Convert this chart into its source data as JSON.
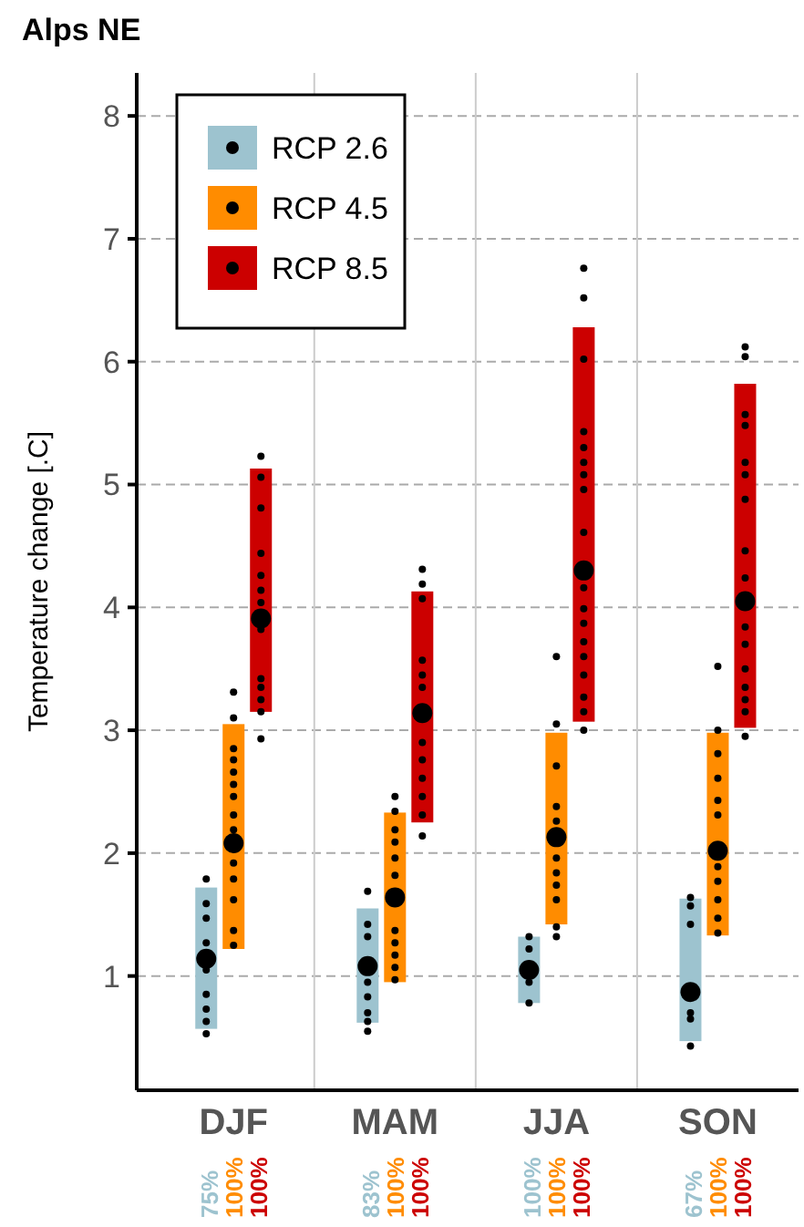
{
  "chart_data": {
    "type": "bar",
    "title": "Alps NE",
    "ylabel": "Temperature change [.C]",
    "categories": [
      "DJF",
      "MAM",
      "JJA",
      "SON"
    ],
    "ylim": [
      0.07,
      8.35
    ],
    "yticks": [
      1,
      2,
      3,
      4,
      5,
      6,
      7,
      8
    ],
    "grid": true,
    "legend": "top left",
    "series": [
      {
        "name": "RCP 2.6",
        "color": "#9dc3cf",
        "base": [
          0.57,
          0.62,
          0.78,
          0.47
        ],
        "values": [
          1.15,
          0.93,
          0.54,
          1.16
        ]
      },
      {
        "name": "RCP 4.5",
        "color": "#ff8c00",
        "base": [
          1.22,
          0.95,
          1.42,
          1.33
        ],
        "values": [
          1.83,
          1.38,
          1.56,
          1.65
        ]
      },
      {
        "name": "RCP 8.5",
        "color": "#cc0000",
        "base": [
          3.15,
          2.25,
          3.07,
          3.02
        ],
        "values": [
          1.98,
          1.88,
          3.21,
          2.8
        ]
      },
      {
        "type": "scatter",
        "color": "#000000",
        "x": [
          "DJF",
          "MAM",
          "JJA",
          "SON"
        ],
        "values": [
          1.14,
          1.08,
          1.05,
          0.87
        ]
      },
      {
        "type": "scatter",
        "color": "#000000",
        "x": [
          "DJF",
          "MAM",
          "JJA",
          "SON"
        ],
        "values": [
          2.08,
          1.64,
          2.13,
          2.02
        ]
      },
      {
        "type": "scatter",
        "color": "#000000",
        "x": [
          "DJF",
          "MAM",
          "JJA",
          "SON"
        ],
        "values": [
          3.91,
          3.14,
          4.3,
          4.05
        ]
      },
      {
        "type": "scatter",
        "color": "#000000",
        "x": [
          "DJF",
          "DJF",
          "DJF",
          "DJF",
          "DJF",
          "DJF",
          "DJF",
          "DJF",
          "DJF",
          "MAM",
          "MAM",
          "MAM",
          "MAM",
          "MAM",
          "MAM",
          "MAM",
          "MAM",
          "JJA",
          "JJA",
          "JJA",
          "JJA",
          "SON",
          "SON",
          "SON",
          "SON",
          "SON",
          "SON"
        ],
        "values": [
          1.79,
          1.59,
          1.47,
          1.27,
          1.05,
          0.85,
          0.73,
          0.63,
          0.53,
          1.69,
          1.42,
          1.32,
          0.95,
          0.83,
          0.7,
          0.63,
          0.55,
          1.32,
          1.22,
          0.95,
          0.78,
          1.64,
          1.57,
          1.42,
          0.7,
          0.65,
          0.43
        ]
      },
      {
        "type": "scatter",
        "color": "#000000",
        "x": [
          "DJF",
          "DJF",
          "DJF",
          "DJF",
          "DJF",
          "DJF",
          "DJF",
          "DJF",
          "DJF",
          "DJF",
          "DJF",
          "DJF",
          "DJF",
          "DJF",
          "MAM",
          "MAM",
          "MAM",
          "MAM",
          "MAM",
          "MAM",
          "MAM",
          "MAM",
          "MAM",
          "MAM",
          "MAM",
          "JJA",
          "JJA",
          "JJA",
          "JJA",
          "JJA",
          "JJA",
          "JJA",
          "JJA",
          "JJA",
          "JJA",
          "JJA",
          "SON",
          "SON",
          "SON",
          "SON",
          "SON",
          "SON",
          "SON",
          "SON",
          "SON",
          "SON",
          "SON"
        ],
        "values": [
          3.31,
          3.1,
          2.85,
          2.76,
          2.66,
          2.56,
          2.46,
          2.31,
          2.19,
          1.92,
          1.79,
          1.62,
          1.37,
          1.25,
          2.46,
          2.34,
          2.19,
          2.09,
          1.96,
          1.82,
          1.37,
          1.27,
          1.17,
          1.07,
          0.97,
          3.6,
          3.05,
          2.71,
          2.38,
          2.26,
          1.96,
          1.84,
          1.74,
          1.62,
          1.4,
          1.32,
          3.52,
          3.0,
          2.81,
          2.61,
          2.43,
          2.31,
          1.89,
          1.77,
          1.62,
          1.47,
          1.35
        ]
      },
      {
        "type": "scatter",
        "color": "#000000",
        "x": [
          "DJF",
          "DJF",
          "DJF",
          "DJF",
          "DJF",
          "DJF",
          "DJF",
          "DJF",
          "DJF",
          "DJF",
          "DJF",
          "DJF",
          "DJF",
          "MAM",
          "MAM",
          "MAM",
          "MAM",
          "MAM",
          "MAM",
          "MAM",
          "MAM",
          "MAM",
          "MAM",
          "MAM",
          "MAM",
          "JJA",
          "JJA",
          "JJA",
          "JJA",
          "JJA",
          "JJA",
          "JJA",
          "JJA",
          "JJA",
          "JJA",
          "JJA",
          "JJA",
          "JJA",
          "JJA",
          "JJA",
          "JJA",
          "JJA",
          "JJA",
          "SON",
          "SON",
          "SON",
          "SON",
          "SON",
          "SON",
          "SON",
          "SON",
          "SON",
          "SON",
          "SON",
          "SON",
          "SON",
          "SON",
          "SON",
          "SON"
        ],
        "values": [
          5.23,
          5.06,
          4.81,
          4.44,
          4.26,
          4.14,
          4.04,
          3.82,
          3.42,
          3.35,
          3.25,
          3.15,
          2.93,
          4.31,
          4.19,
          4.07,
          3.57,
          3.45,
          3.35,
          2.9,
          2.76,
          2.61,
          2.46,
          2.31,
          2.14,
          6.76,
          6.52,
          6.02,
          5.43,
          5.3,
          5.18,
          5.08,
          4.96,
          4.61,
          4.16,
          3.99,
          3.87,
          3.72,
          3.6,
          3.45,
          3.27,
          3.15,
          3.0,
          6.12,
          6.04,
          5.57,
          5.48,
          5.18,
          5.08,
          4.88,
          4.46,
          4.24,
          3.84,
          3.7,
          3.5,
          3.35,
          3.25,
          3.15,
          2.95
        ]
      }
    ],
    "annotations": [
      "75%",
      "100%",
      "100%",
      "83%",
      "100%",
      "100%",
      "100%",
      "100%",
      "100%",
      "67%",
      "100%",
      "100%"
    ]
  }
}
